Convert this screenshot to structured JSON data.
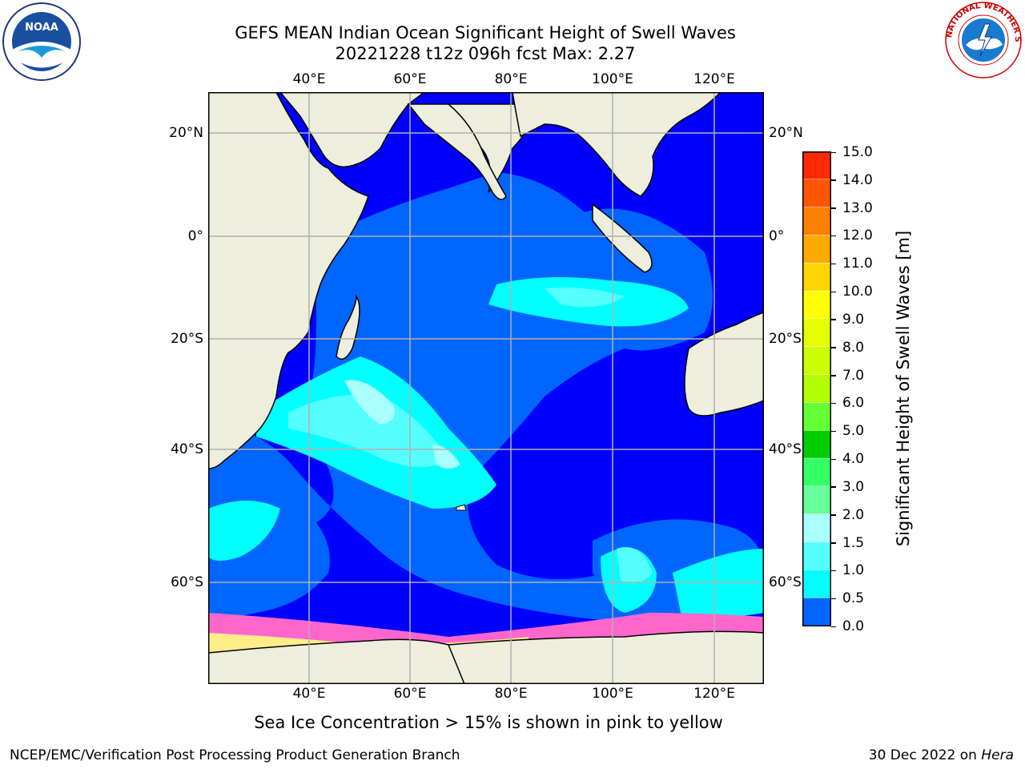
{
  "header": {
    "title_line1": "GEFS MEAN Indian Ocean Significant Height of Swell Waves",
    "title_line2": "20221228 t12z 096h fcst   Max: 2.27"
  },
  "map": {
    "lon_ticks": [
      "40°E",
      "60°E",
      "80°E",
      "100°E",
      "120°E"
    ],
    "lat_ticks": [
      "20°N",
      "0°",
      "20°S",
      "40°S",
      "60°S"
    ],
    "extent": {
      "lon_min": 20,
      "lon_max": 130,
      "lat_min": -71,
      "lat_max": 28
    },
    "colors": {
      "land": "#eeeedd",
      "ocean_low": "#0000ff",
      "ocean_mid": "#0066ff",
      "grid": "#b0b0b0",
      "ice": "#ff66cc"
    }
  },
  "colorbar": {
    "label": "Significant Height of Swell Waves [m]",
    "ticks": [
      "15.0",
      "14.0",
      "13.0",
      "12.0",
      "11.0",
      "10.0",
      "9.0",
      "8.0",
      "7.0",
      "6.0",
      "5.0",
      "4.0",
      "3.0",
      "2.0",
      "1.5",
      "1.0",
      "0.5",
      "0.0"
    ],
    "colors": [
      "#ff0000",
      "#ff2a00",
      "#ff5500",
      "#ff8000",
      "#ffaa00",
      "#ffd400",
      "#ffff00",
      "#e6ff00",
      "#ccff00",
      "#b3ff00",
      "#66ff33",
      "#00cc00",
      "#33ff66",
      "#66ff99",
      "#aaffff",
      "#55ffff",
      "#00ffff",
      "#0066ff",
      "#0000ff"
    ]
  },
  "footnote": "Sea Ice Concentration > 15% is shown in pink to yellow",
  "footer": {
    "credit": "NCEP/EMC/Verification Post Processing Product Generation Branch",
    "date_prefix": "30 Dec 2022 on ",
    "machine": "Hera"
  },
  "logos": {
    "noaa_text": "NOAA",
    "nws_text": "NATIONAL WEATHER SERVICE"
  }
}
